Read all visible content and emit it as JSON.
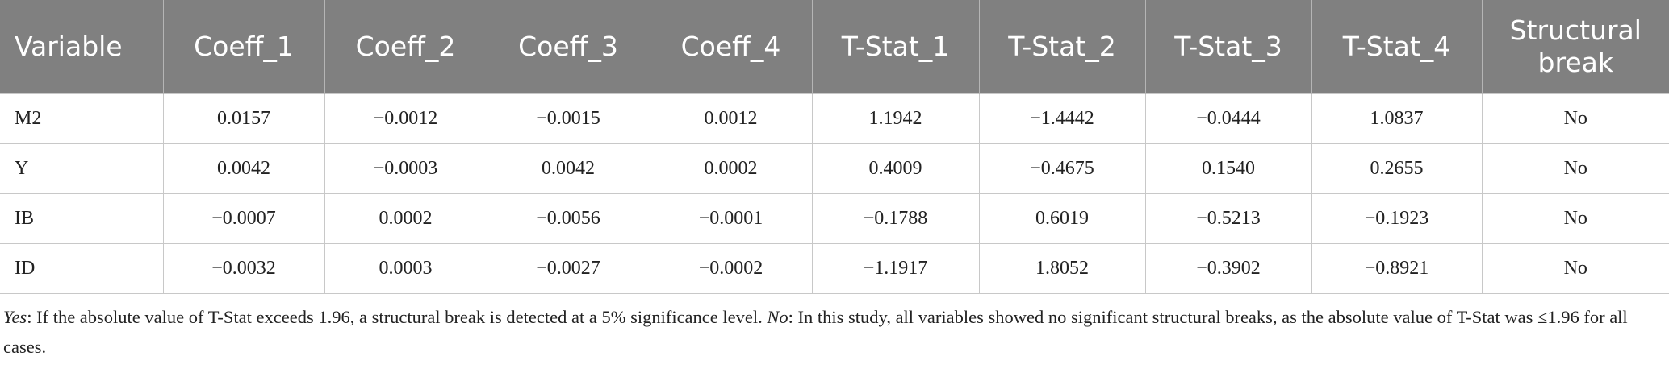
{
  "table": {
    "header": [
      "Variable",
      "Coeff_1",
      "Coeff_2",
      "Coeff_3",
      "Coeff_4",
      "T-Stat_1",
      "T-Stat_2",
      "T-Stat_3",
      "T-Stat_4",
      "Structural break"
    ],
    "rows": [
      [
        "M2",
        "0.0157",
        "−0.0012",
        "−0.0015",
        "0.0012",
        "1.1942",
        "−1.4442",
        "−0.0444",
        "1.0837",
        "No"
      ],
      [
        "Y",
        "0.0042",
        "−0.0003",
        "0.0042",
        "0.0002",
        "0.4009",
        "−0.4675",
        "0.1540",
        "0.2655",
        "No"
      ],
      [
        "IB",
        "−0.0007",
        "0.0002",
        "−0.0056",
        "−0.0001",
        "−0.1788",
        "0.6019",
        "−0.5213",
        "−0.1923",
        "No"
      ],
      [
        "ID",
        "−0.0032",
        "0.0003",
        "−0.0027",
        "−0.0002",
        "−1.1917",
        "1.8052",
        "−0.3902",
        "−0.8921",
        "No"
      ]
    ]
  },
  "footnote": {
    "yes_label": "Yes",
    "yes_text": ": If the absolute value of T-Stat exceeds 1.96, a structural break is detected at a 5% significance level. ",
    "no_label": "No",
    "no_text": ": In this study, all variables showed no significant structural breaks, as the absolute value of T-Stat was ≤1.96 for all cases."
  }
}
